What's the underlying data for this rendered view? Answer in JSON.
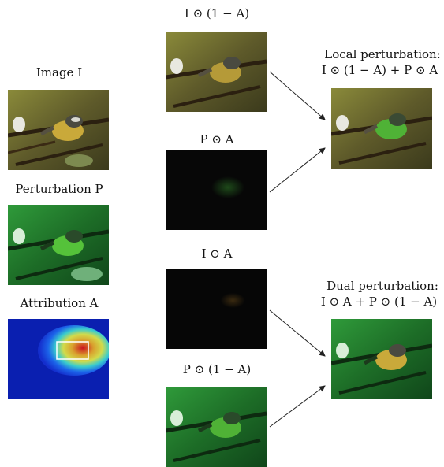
{
  "labels": {
    "image": "Image I",
    "perturbation": "Perturbation P",
    "attribution": "Attribution A",
    "i_1ma": "I ⊙ (1 − A)",
    "p_a": "P ⊙ A",
    "i_a": "I ⊙ A",
    "p_1ma": "P ⊙ (1 − A)",
    "local_title": "Local perturbation:",
    "local_formula": "I ⊙ (1 − A) + P ⊙ A",
    "dual_title": "Dual perturbation:",
    "dual_formula": "I ⊙ A + P ⊙ (1 − A)"
  },
  "colors": {
    "bird_scene_bg": "#6b6a2e",
    "bird_body": "#c9a93a",
    "green_scene_bg": "#1f7a2a",
    "green_bird_body": "#55c23a",
    "attribution_low": "#0a1fb0",
    "attribution_high": "#d01010",
    "dark_image": "#060606",
    "arrow": "#222222"
  }
}
